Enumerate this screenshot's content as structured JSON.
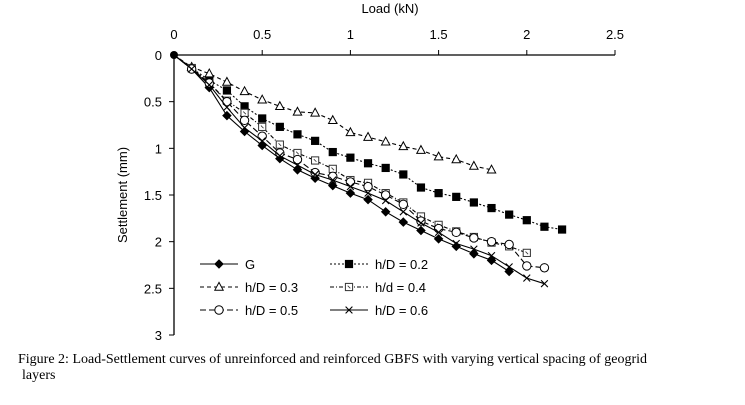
{
  "chart_data": {
    "type": "line",
    "title": "",
    "xlabel": "Load (kN)",
    "ylabel": "Settlement (mm)",
    "xlim": [
      0,
      2.5
    ],
    "ylim": [
      0,
      3
    ],
    "y_inverted": true,
    "x_axis_position": "top",
    "x_ticks": [
      "0",
      "0.5",
      "1",
      "1.5",
      "2",
      "2.5"
    ],
    "y_ticks": [
      "0",
      "0.5",
      "1",
      "1.5",
      "2",
      "2.5",
      "3"
    ],
    "grid": false,
    "legend_position": "bottom-left inside, two columns",
    "series": [
      {
        "name": "G",
        "marker": "filled-diamond",
        "line": "solid",
        "color": "#000000",
        "x": [
          0,
          0.1,
          0.2,
          0.3,
          0.4,
          0.5,
          0.6,
          0.7,
          0.8,
          0.9,
          1.0,
          1.1,
          1.2,
          1.3,
          1.4,
          1.5,
          1.6,
          1.7,
          1.8,
          1.9
        ],
        "y": [
          0,
          0.15,
          0.35,
          0.65,
          0.82,
          0.97,
          1.11,
          1.23,
          1.32,
          1.4,
          1.48,
          1.55,
          1.68,
          1.79,
          1.88,
          1.97,
          2.05,
          2.13,
          2.2,
          2.32
        ]
      },
      {
        "name": "h/D = 0.2",
        "marker": "filled-square",
        "line": "dotted",
        "color": "#000000",
        "x": [
          0,
          0.1,
          0.2,
          0.3,
          0.4,
          0.5,
          0.6,
          0.7,
          0.8,
          0.9,
          1.0,
          1.1,
          1.2,
          1.3,
          1.4,
          1.5,
          1.6,
          1.7,
          1.8,
          1.9,
          2.0,
          2.1,
          2.2
        ],
        "y": [
          0,
          0.14,
          0.27,
          0.38,
          0.55,
          0.68,
          0.77,
          0.85,
          0.92,
          1.04,
          1.1,
          1.16,
          1.21,
          1.28,
          1.42,
          1.48,
          1.52,
          1.58,
          1.64,
          1.71,
          1.77,
          1.84,
          1.87
        ]
      },
      {
        "name": "h/D = 0.3",
        "marker": "open-triangle",
        "line": "dashed",
        "color": "#000000",
        "x": [
          0,
          0.1,
          0.2,
          0.3,
          0.4,
          0.5,
          0.6,
          0.7,
          0.8,
          0.9,
          1.0,
          1.1,
          1.2,
          1.3,
          1.4,
          1.5,
          1.6,
          1.7,
          1.8
        ],
        "y": [
          0,
          0.13,
          0.2,
          0.29,
          0.39,
          0.48,
          0.55,
          0.61,
          0.62,
          0.7,
          0.83,
          0.88,
          0.93,
          0.98,
          1.02,
          1.09,
          1.12,
          1.19,
          1.23
        ]
      },
      {
        "name": "h/d = 0.4",
        "marker": "open-square-dot",
        "line": "dash-dot",
        "color": "#000000",
        "x": [
          0,
          0.1,
          0.2,
          0.3,
          0.4,
          0.5,
          0.6,
          0.7,
          0.8,
          0.9,
          1.0,
          1.1,
          1.2,
          1.3,
          1.4,
          1.5,
          1.6,
          1.7,
          1.8,
          1.9,
          2.0
        ],
        "y": [
          0,
          0.14,
          0.3,
          0.49,
          0.62,
          0.77,
          0.96,
          1.05,
          1.13,
          1.22,
          1.34,
          1.37,
          1.48,
          1.58,
          1.73,
          1.82,
          1.89,
          1.95,
          2.01,
          2.05,
          2.12
        ]
      },
      {
        "name": "h/D = 0.5",
        "marker": "open-circle",
        "line": "long-dash",
        "color": "#000000",
        "x": [
          0,
          0.1,
          0.2,
          0.3,
          0.4,
          0.5,
          0.6,
          0.7,
          0.8,
          0.9,
          1.0,
          1.1,
          1.2,
          1.3,
          1.4,
          1.5,
          1.6,
          1.7,
          1.8,
          1.9,
          2.0,
          2.1
        ],
        "y": [
          0,
          0.15,
          0.3,
          0.5,
          0.7,
          0.87,
          1.05,
          1.12,
          1.26,
          1.3,
          1.36,
          1.41,
          1.5,
          1.6,
          1.78,
          1.86,
          1.9,
          1.96,
          2.0,
          2.03,
          2.26,
          2.28
        ]
      },
      {
        "name": "h/D = 0.6",
        "marker": "x",
        "line": "solid",
        "color": "#000000",
        "x": [
          0,
          0.1,
          0.2,
          0.3,
          0.4,
          0.5,
          0.6,
          0.7,
          0.8,
          0.9,
          1.0,
          1.1,
          1.2,
          1.3,
          1.4,
          1.5,
          1.6,
          1.7,
          1.8,
          1.9,
          2.0,
          2.1
        ],
        "y": [
          0,
          0.15,
          0.32,
          0.56,
          0.78,
          0.92,
          1.08,
          1.18,
          1.28,
          1.34,
          1.41,
          1.48,
          1.56,
          1.68,
          1.8,
          1.9,
          2.02,
          2.08,
          2.15,
          2.27,
          2.39,
          2.45
        ]
      }
    ]
  },
  "caption": {
    "line1": "Figure 2: Load-Settlement curves of unreinforced and reinforced GBFS with varying vertical spacing of geogrid",
    "line2": "layers"
  }
}
